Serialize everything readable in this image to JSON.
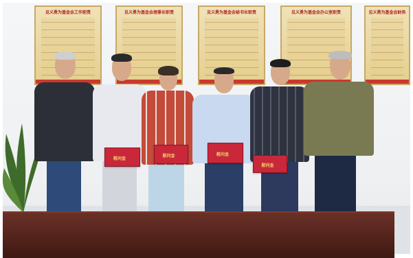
{
  "photo": {
    "boards": [
      {
        "title": "见义勇为基金会工作职责"
      },
      {
        "title": "见义勇为基金会理事长职责"
      },
      {
        "title": "见义勇为基金会秘书长职责"
      },
      {
        "title": "见义勇为基金会办公室职责"
      },
      {
        "title": "见义勇为基金会财务"
      }
    ],
    "book_label": "慰问金"
  }
}
